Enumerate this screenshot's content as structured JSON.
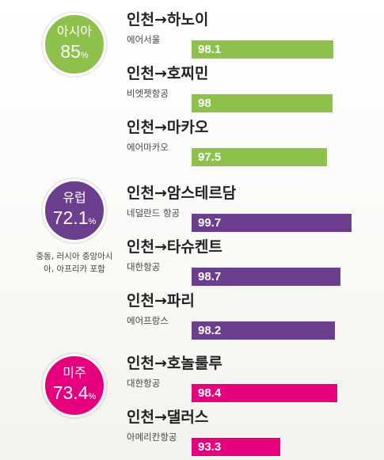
{
  "colors": {
    "asia": "#8dc14b",
    "europe": "#6b3e8e",
    "americas": "#e6007e"
  },
  "regions": [
    {
      "key": "asia",
      "name": "아시아",
      "percent": "85",
      "unit": "%",
      "note": ""
    },
    {
      "key": "europe",
      "name": "유럽",
      "percent": "72.1",
      "unit": "%",
      "note": "중동, 러시아 중앙아시아, 아프리카 포함"
    },
    {
      "key": "americas",
      "name": "미주",
      "percent": "73.4",
      "unit": "%",
      "note": ""
    }
  ],
  "chart_data": {
    "type": "bar",
    "series": [
      {
        "region": "asia",
        "items": [
          {
            "route": "인천→하노이",
            "airline": "에어서울",
            "value": 98.1,
            "label": "98.1"
          },
          {
            "route": "인천→호찌민",
            "airline": "비엣젯항공",
            "value": 98,
            "label": "98"
          },
          {
            "route": "인천→마카오",
            "airline": "에어마카오",
            "value": 97.5,
            "label": "97.5"
          }
        ]
      },
      {
        "region": "europe",
        "items": [
          {
            "route": "인천→암스테르담",
            "airline": "네덜란드 항공",
            "value": 99.7,
            "label": "99.7"
          },
          {
            "route": "인천→타슈켄트",
            "airline": "대한항공",
            "value": 98.7,
            "label": "98.7"
          },
          {
            "route": "인천→파리",
            "airline": "에어프랑스",
            "value": 98.2,
            "label": "98.2"
          }
        ]
      },
      {
        "region": "americas",
        "items": [
          {
            "route": "인천→호놀룰루",
            "airline": "대한항공",
            "value": 98.4,
            "label": "98.4"
          },
          {
            "route": "인천→댈러스",
            "airline": "아메리칸항공",
            "value": 93.3,
            "label": "93.3"
          }
        ]
      }
    ]
  }
}
